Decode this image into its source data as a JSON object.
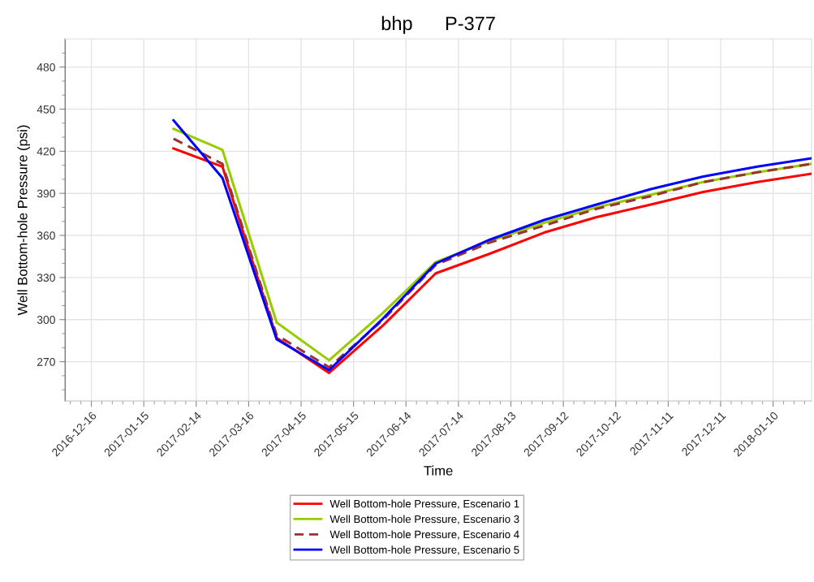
{
  "chart_data": {
    "type": "line",
    "title": "bhp      P-377",
    "xlabel": "Time",
    "ylabel": "Well Bottom-hole Pressure (psi)",
    "x": [
      "2017-02-01",
      "2017-03-01",
      "2017-04-01",
      "2017-05-01",
      "2017-06-01",
      "2017-07-01",
      "2017-08-01",
      "2017-09-01",
      "2017-10-01",
      "2017-11-01",
      "2017-12-01",
      "2018-01-01",
      "2018-02-01"
    ],
    "series": [
      {
        "name": "Well Bottom-hole Pressure, Escenario 1",
        "color": "#ff0000",
        "line_style": "solid",
        "values": [
          422,
          409,
          287,
          262,
          296,
          333,
          347,
          362,
          373,
          382,
          391,
          398,
          404
        ]
      },
      {
        "name": "Well Bottom-hole Pressure, Escenario 3",
        "color": "#99cc00",
        "line_style": "solid",
        "values": [
          436,
          421,
          298,
          271,
          305,
          341,
          356,
          369,
          380,
          389,
          398,
          405,
          411
        ]
      },
      {
        "name": "Well Bottom-hole Pressure, Escenario 4",
        "color": "#993333",
        "line_style": "dashed",
        "values": [
          429,
          411,
          289,
          266,
          300,
          339,
          355,
          367,
          379,
          388,
          398,
          405,
          411
        ]
      },
      {
        "name": "Well Bottom-hole Pressure, Escenario 5",
        "color": "#0000ff",
        "line_style": "solid",
        "values": [
          442,
          401,
          286,
          264,
          301,
          340,
          357,
          371,
          382,
          393,
          402,
          409,
          415
        ]
      }
    ],
    "xlim": [
      "2016-12-01",
      "2018-02-01"
    ],
    "xticks": [
      "2016-12-16",
      "2017-01-15",
      "2017-02-14",
      "2017-03-16",
      "2017-04-15",
      "2017-05-15",
      "2017-06-14",
      "2017-07-14",
      "2017-08-13",
      "2017-09-12",
      "2017-10-12",
      "2017-11-11",
      "2017-12-11",
      "2018-01-10"
    ],
    "ylim": [
      242,
      500
    ],
    "yticks": [
      270,
      300,
      330,
      360,
      390,
      420,
      450,
      480
    ],
    "grid": true,
    "legend": "bottom",
    "marker": "none"
  }
}
